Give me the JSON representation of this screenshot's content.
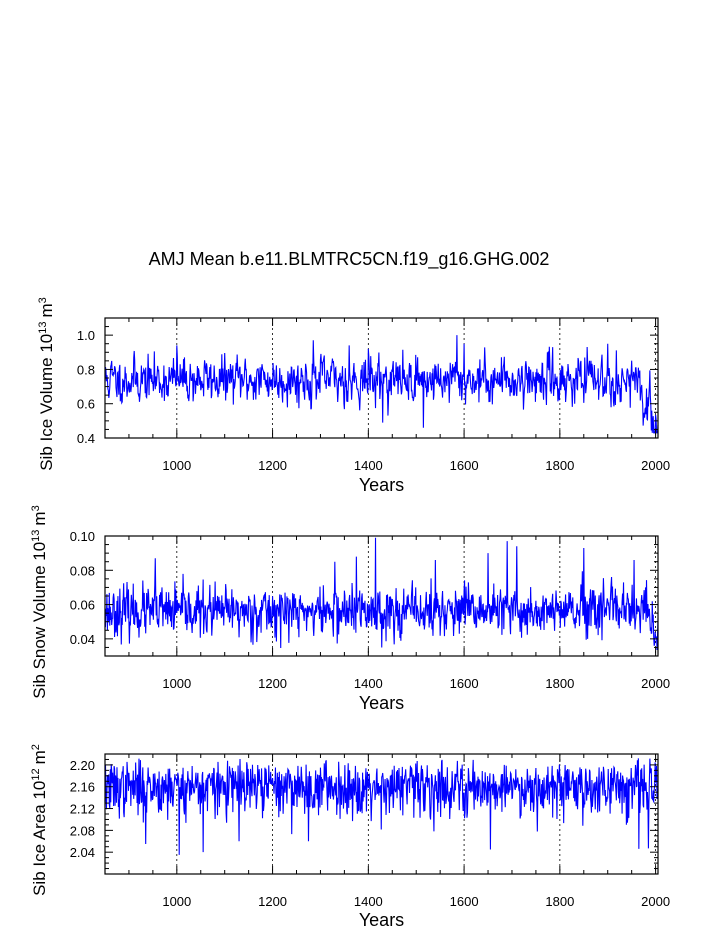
{
  "page_title": "AMJ Mean b.e11.BLMTRC5CN.f19_g16.GHG.002",
  "chart_data": [
    {
      "type": "line",
      "ylabel": {
        "base": "Sib Ice Volume 10",
        "exp": "13",
        "unit": "m",
        "unit_exp": "3"
      },
      "xlabel": "Years",
      "xlim": [
        850,
        2005
      ],
      "ylim": [
        0.4,
        1.1
      ],
      "xticks": [
        1000,
        1200,
        1400,
        1600,
        1800,
        2000
      ],
      "yticks": [
        0.4,
        0.6,
        0.8,
        1.0
      ],
      "ytick_labels": [
        "0.4",
        "0.6",
        "0.8",
        "1.0"
      ],
      "ytick_minor_step": 0.05,
      "series_model": {
        "name": "Sib Ice Volume",
        "mean": 0.74,
        "noise": 0.075,
        "lag": 0.35,
        "late_start": 1950,
        "late_end_value": 0.47,
        "seed": 11,
        "spikes": [
          [
            1585,
            1.0
          ],
          [
            1600,
            0.95
          ],
          [
            1400,
            0.92
          ],
          [
            1785,
            0.93
          ],
          [
            1000,
            0.94
          ],
          [
            1900,
            0.95
          ],
          [
            1285,
            0.97
          ],
          [
            1360,
            0.94
          ],
          [
            1515,
            0.46
          ],
          [
            1430,
            0.49
          ]
        ],
        "min": 0.43,
        "max": 1.02
      }
    },
    {
      "type": "line",
      "ylabel": {
        "base": "Sib Snow Volume 10",
        "exp": "13",
        "unit": "m",
        "unit_exp": "3"
      },
      "xlabel": "Years",
      "xlim": [
        850,
        2005
      ],
      "ylim": [
        0.03,
        0.1
      ],
      "xticks": [
        1000,
        1200,
        1400,
        1600,
        1800,
        2000
      ],
      "yticks": [
        0.04,
        0.06,
        0.08,
        0.1
      ],
      "ytick_labels": [
        "0.04",
        "0.06",
        "0.08",
        "0.10"
      ],
      "ytick_minor_step": 0.005,
      "series_model": {
        "name": "Sib Snow Volume",
        "mean": 0.056,
        "noise": 0.0075,
        "lag": 0.1,
        "late_start": 1985,
        "late_end_value": 0.036,
        "seed": 23,
        "spikes": [
          [
            1415,
            0.099
          ],
          [
            1690,
            0.097
          ],
          [
            1710,
            0.094
          ],
          [
            1850,
            0.093
          ],
          [
            1375,
            0.088
          ],
          [
            1540,
            0.086
          ],
          [
            1955,
            0.086
          ],
          [
            955,
            0.087
          ],
          [
            1650,
            0.09
          ],
          [
            1330,
            0.085
          ]
        ],
        "min": 0.031,
        "max": 0.1
      }
    },
    {
      "type": "line",
      "ylabel": {
        "base": "Sib Ice Area 10",
        "exp": "12",
        "unit": "m",
        "unit_exp": "2"
      },
      "xlabel": "Years",
      "xlim": [
        850,
        2005
      ],
      "ylim": [
        2.0,
        2.22
      ],
      "xticks": [
        1000,
        1200,
        1400,
        1600,
        1800,
        2000
      ],
      "yticks": [
        2.04,
        2.08,
        2.12,
        2.16,
        2.2
      ],
      "ytick_labels": [
        "2.04",
        "2.08",
        "2.12",
        "2.16",
        "2.20"
      ],
      "ytick_minor_step": 0.01,
      "series_model": {
        "name": "Sib Ice Area",
        "mean": 2.163,
        "noise": 0.02,
        "lag": 0.0,
        "late_start": 2100,
        "late_end_value": 2.15,
        "seed": 37,
        "skew_down": true,
        "spikes": [
          [
            1005,
            2.035
          ],
          [
            1055,
            2.04
          ],
          [
            1655,
            2.045
          ],
          [
            1965,
            2.046
          ],
          [
            1985,
            2.047
          ],
          [
            935,
            2.055
          ],
          [
            1275,
            2.06
          ],
          [
            1130,
            2.06
          ]
        ],
        "min": 2.03,
        "max": 2.215
      }
    }
  ]
}
